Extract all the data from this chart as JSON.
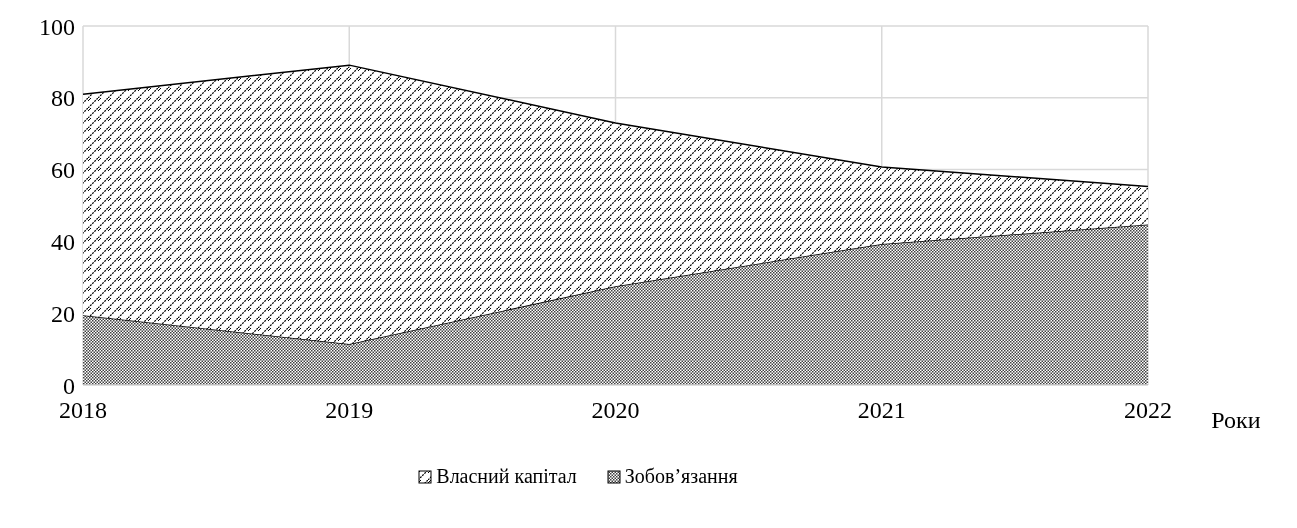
{
  "chart_data": {
    "type": "area",
    "stacked": true,
    "xlabel": "Роки",
    "x": [
      2018,
      2019,
      2020,
      2021,
      2022
    ],
    "xlim": [
      2018,
      2022
    ],
    "xticks": [
      2018,
      2019,
      2020,
      2021,
      2022
    ],
    "ylim": [
      0,
      100
    ],
    "yticks": [
      0,
      20,
      40,
      60,
      80,
      100
    ],
    "grid": true,
    "legend": "bottom",
    "series": [
      {
        "name": "Зобов’язання",
        "color": "#404040",
        "values": [
          19.4,
          11.4,
          27.5,
          39.3,
          44.7
        ]
      },
      {
        "name": "Власний капітал",
        "color": "#000000",
        "values": [
          61.6,
          77.7,
          45.5,
          21.4,
          10.6
        ]
      }
    ]
  }
}
